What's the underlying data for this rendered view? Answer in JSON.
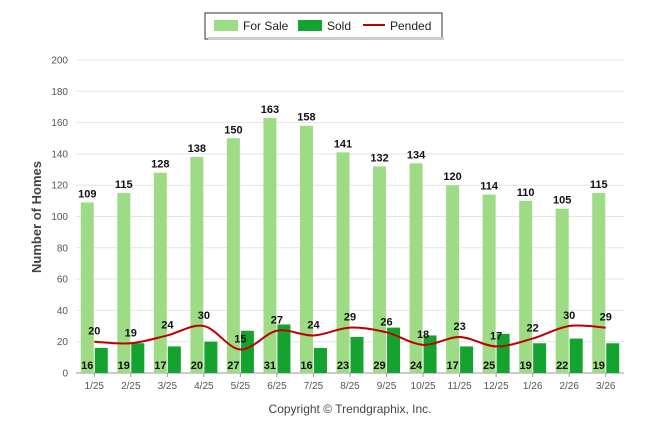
{
  "chart_data": {
    "type": "bar",
    "title": "",
    "xlabel": "",
    "ylabel": "Number of Homes",
    "ylim": [
      0,
      200
    ],
    "yticks": [
      "0",
      "20",
      "40",
      "60",
      "80",
      "100",
      "120",
      "140",
      "160",
      "180",
      "200"
    ],
    "grid": true,
    "legend_position": "top-center",
    "categories": [
      "1/25",
      "2/25",
      "3/25",
      "4/25",
      "5/25",
      "6/25",
      "7/25",
      "8/25",
      "9/25",
      "10/25",
      "11/25",
      "12/25",
      "1/26",
      "2/26",
      "3/26"
    ],
    "series": [
      {
        "name": "For Sale",
        "kind": "bar",
        "color": "#9ddc84",
        "values": [
          109,
          115,
          128,
          138,
          150,
          163,
          158,
          141,
          132,
          134,
          120,
          114,
          110,
          105,
          115
        ]
      },
      {
        "name": "Sold",
        "kind": "bar",
        "color": "#14a32e",
        "values": [
          16,
          19,
          17,
          20,
          27,
          31,
          16,
          23,
          29,
          24,
          17,
          25,
          19,
          22,
          19
        ]
      },
      {
        "name": "Pended",
        "kind": "line",
        "color": "#c00000",
        "values": [
          20,
          19,
          24,
          30,
          15,
          27,
          24,
          29,
          26,
          18,
          23,
          17,
          22,
          30,
          29
        ]
      }
    ],
    "credit": "Copyright © Trendgraphix, Inc."
  }
}
